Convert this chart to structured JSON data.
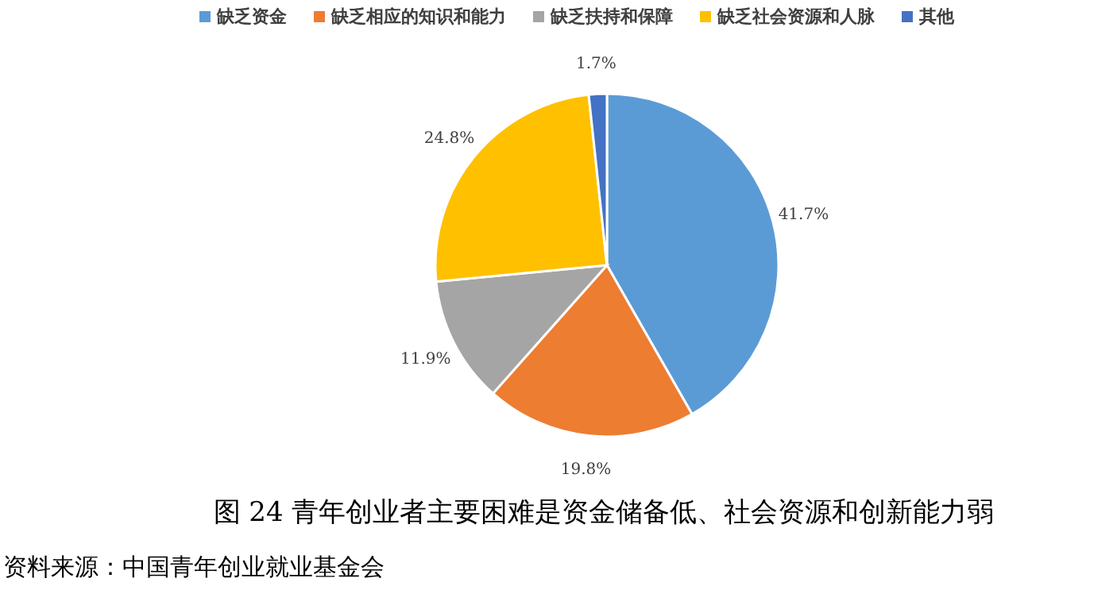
{
  "chart_data": {
    "type": "pie",
    "title": "图 24 青年创业者主要困难是资金储备低、社会资源和创新能力弱",
    "categories": [
      "缺乏资金",
      "缺乏相应的知识和能力",
      "缺乏扶持和保障",
      "缺乏社会资源和人脉",
      "其他"
    ],
    "values": [
      41.7,
      19.8,
      11.9,
      24.8,
      1.7
    ],
    "value_labels": [
      "41.7%",
      "19.8%",
      "11.9%",
      "24.8%",
      "1.7%"
    ],
    "colors": [
      "#5b9bd5",
      "#ed7d31",
      "#a5a5a5",
      "#ffc000",
      "#4472c4"
    ],
    "legend": "top",
    "annotations": [
      "资料来源：中国青年创业就业基金会"
    ]
  }
}
